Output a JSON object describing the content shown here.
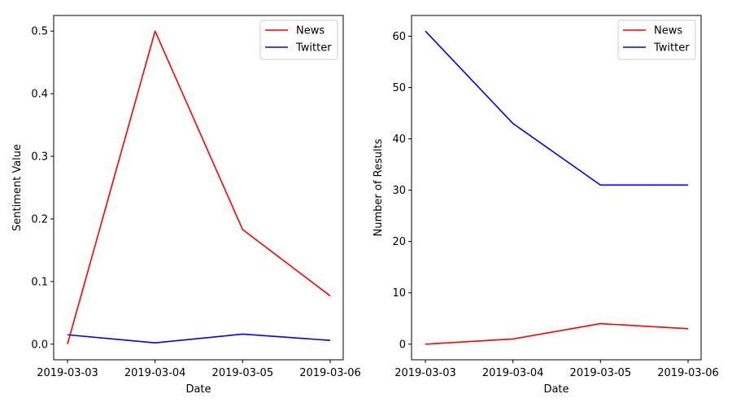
{
  "colors": {
    "News": "#ff0000",
    "Twitter": "#0000ff"
  },
  "chart_data": [
    {
      "type": "line",
      "title": "",
      "x": [
        "2019-03-03",
        "2019-03-04",
        "2019-03-05",
        "2019-03-06"
      ],
      "xlabel": "Date",
      "ylabel": "Sentiment Value",
      "ylim": [
        -0.025,
        0.525
      ],
      "yticks": [
        0.0,
        0.1,
        0.2,
        0.3,
        0.4,
        0.5
      ],
      "ytick_labels": [
        "0.0",
        "0.1",
        "0.2",
        "0.3",
        "0.4",
        "0.5"
      ],
      "grid": false,
      "legend": "top-right",
      "series": [
        {
          "name": "News",
          "color": "#ff0000",
          "values": [
            0.0,
            0.5,
            0.183,
            0.077
          ]
        },
        {
          "name": "Twitter",
          "color": "#0000ff",
          "values": [
            0.015,
            0.002,
            0.016,
            0.006
          ]
        }
      ]
    },
    {
      "type": "line",
      "title": "",
      "x": [
        "2019-03-03",
        "2019-03-04",
        "2019-03-05",
        "2019-03-06"
      ],
      "xlabel": "Date",
      "ylabel": "Number of Results",
      "ylim": [
        -3.05,
        64.05
      ],
      "yticks": [
        0,
        10,
        20,
        30,
        40,
        50,
        60
      ],
      "ytick_labels": [
        "0",
        "10",
        "20",
        "30",
        "40",
        "50",
        "60"
      ],
      "grid": false,
      "legend": "top-right",
      "series": [
        {
          "name": "News",
          "color": "#ff0000",
          "values": [
            0,
            1,
            4,
            3
          ]
        },
        {
          "name": "Twitter",
          "color": "#0000ff",
          "values": [
            61,
            43,
            31,
            31
          ]
        }
      ]
    }
  ]
}
